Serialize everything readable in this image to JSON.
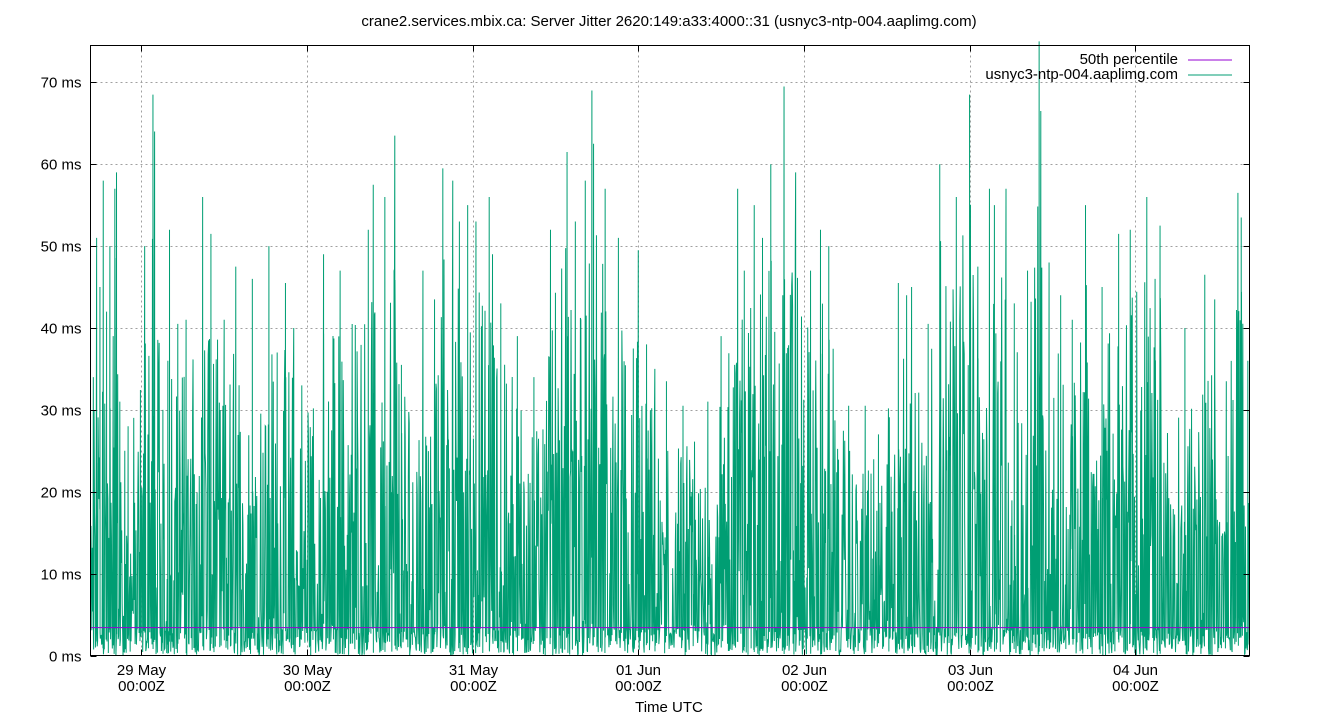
{
  "chart_data": {
    "type": "line",
    "title": "crane2.services.mbix.ca: Server Jitter 2620:149:a33:4000::31 (usnyc3-ntp-004.aaplimg.com)",
    "xlabel": "Time UTC",
    "ylabel": "",
    "ylim": [
      0,
      74.5
    ],
    "xlim": [
      -0.307,
      6.69
    ],
    "y_unit": "ms",
    "y_ticks": [
      0,
      10,
      20,
      30,
      40,
      50,
      60,
      70
    ],
    "y_tick_labels": [
      "0 ms",
      "10 ms",
      "20 ms",
      "30 ms",
      "40 ms",
      "50 ms",
      "60 ms",
      "70 ms"
    ],
    "x_ticks": [
      0,
      1,
      2,
      3,
      4,
      5,
      6
    ],
    "x_tick_labels": [
      [
        "29 May",
        "00:00Z"
      ],
      [
        "30 May",
        "00:00Z"
      ],
      [
        "31 May",
        "00:00Z"
      ],
      [
        "01 Jun",
        "00:00Z"
      ],
      [
        "02 Jun",
        "00:00Z"
      ],
      [
        "03 Jun",
        "00:00Z"
      ],
      [
        "04 Jun",
        "00:00Z"
      ]
    ],
    "grid": true,
    "legend_position": "top-right",
    "series": [
      {
        "name": "50th percentile",
        "color": "#9400d3",
        "style": "horizontal-line",
        "value": 3.4
      },
      {
        "name": "usnyc3-ntp-004.aaplimg.com",
        "color": "#009e73",
        "style": "impulse-line",
        "peaks": [
          [
            -0.29,
            34
          ],
          [
            -0.27,
            51
          ],
          [
            -0.25,
            45
          ],
          [
            -0.23,
            58
          ],
          [
            -0.21,
            42
          ],
          [
            -0.19,
            50
          ],
          [
            -0.17,
            39
          ],
          [
            -0.16,
            57
          ],
          [
            -0.15,
            59
          ],
          [
            -0.13,
            31
          ],
          [
            -0.1,
            25
          ],
          [
            -0.08,
            28
          ],
          [
            0.02,
            50
          ],
          [
            0.07,
            68.5
          ],
          [
            0.08,
            64
          ],
          [
            0.13,
            30
          ],
          [
            0.16,
            36
          ],
          [
            0.17,
            52
          ],
          [
            0.22,
            40.5
          ],
          [
            0.27,
            41
          ],
          [
            0.37,
            56
          ],
          [
            0.42,
            51.5
          ],
          [
            0.5,
            41
          ],
          [
            0.57,
            47.5
          ],
          [
            0.59,
            33
          ],
          [
            0.67,
            46
          ],
          [
            0.77,
            50
          ],
          [
            0.82,
            37
          ],
          [
            0.87,
            45.5
          ],
          [
            0.92,
            40
          ],
          [
            1.1,
            49
          ],
          [
            1.2,
            47
          ],
          [
            1.37,
            52
          ],
          [
            1.4,
            57.5
          ],
          [
            1.47,
            56
          ],
          [
            1.53,
            63.5
          ],
          [
            1.57,
            35.5
          ],
          [
            1.7,
            47
          ],
          [
            1.77,
            43.5
          ],
          [
            1.82,
            59.5
          ],
          [
            1.88,
            58
          ],
          [
            1.92,
            53
          ],
          [
            1.97,
            55
          ],
          [
            2.02,
            53
          ],
          [
            2.1,
            56
          ],
          [
            2.12,
            49
          ],
          [
            2.17,
            43
          ],
          [
            2.27,
            39
          ],
          [
            2.37,
            34
          ],
          [
            2.47,
            52
          ],
          [
            2.57,
            61.5
          ],
          [
            2.62,
            53
          ],
          [
            2.68,
            58
          ],
          [
            2.72,
            69
          ],
          [
            2.73,
            62.5
          ],
          [
            2.8,
            57
          ],
          [
            2.88,
            51
          ],
          [
            2.97,
            37.5
          ],
          [
            3.0,
            49.5
          ],
          [
            3.05,
            38
          ],
          [
            3.1,
            35
          ],
          [
            3.17,
            33.5
          ],
          [
            3.27,
            30.5
          ],
          [
            3.42,
            31
          ],
          [
            3.5,
            39
          ],
          [
            3.6,
            57
          ],
          [
            3.64,
            47
          ],
          [
            3.7,
            55
          ],
          [
            3.75,
            51
          ],
          [
            3.8,
            60
          ],
          [
            3.88,
            69.5
          ],
          [
            3.95,
            59
          ],
          [
            4.04,
            47
          ],
          [
            4.1,
            52
          ],
          [
            4.15,
            50
          ],
          [
            4.27,
            30.5
          ],
          [
            4.37,
            30.5
          ],
          [
            4.45,
            27
          ],
          [
            4.57,
            45.5
          ],
          [
            4.62,
            44
          ],
          [
            4.65,
            45
          ],
          [
            4.75,
            40.5
          ],
          [
            4.82,
            60
          ],
          [
            4.92,
            56
          ],
          [
            5.0,
            68.5
          ],
          [
            5.05,
            47.5
          ],
          [
            5.12,
            57
          ],
          [
            5.15,
            55
          ],
          [
            5.22,
            57
          ],
          [
            5.27,
            43
          ],
          [
            5.35,
            47
          ],
          [
            5.42,
            75
          ],
          [
            5.43,
            66.5
          ],
          [
            5.48,
            48
          ],
          [
            5.55,
            44
          ],
          [
            5.62,
            41
          ],
          [
            5.7,
            55
          ],
          [
            5.8,
            45
          ],
          [
            5.9,
            51.5
          ],
          [
            5.97,
            52
          ],
          [
            6.07,
            56
          ],
          [
            6.12,
            46
          ],
          [
            6.15,
            52.5
          ],
          [
            6.3,
            40
          ],
          [
            6.42,
            46.5
          ],
          [
            6.48,
            43.5
          ],
          [
            6.55,
            33.5
          ],
          [
            6.62,
            56.5
          ],
          [
            6.64,
            53.5
          ],
          [
            6.68,
            36
          ]
        ]
      }
    ]
  }
}
